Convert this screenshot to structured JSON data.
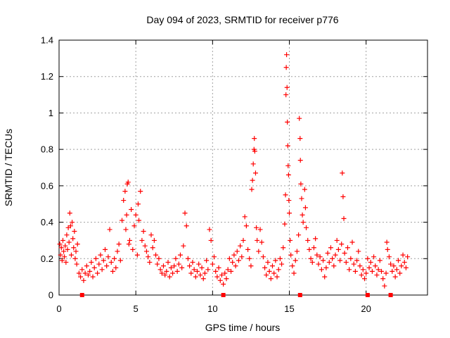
{
  "chart_data": {
    "type": "scatter",
    "title": "Day 094 of 2023, SRMTID for receiver p776",
    "xlabel": "GPS time / hours",
    "ylabel": "SRMTID / TECUs",
    "xlim": [
      0,
      24
    ],
    "ylim": [
      0,
      1.4
    ],
    "x_ticks": [
      0,
      5,
      10,
      15,
      20
    ],
    "x_tick_labels": [
      "0",
      "5",
      "10",
      "15",
      "20"
    ],
    "y_ticks": [
      0,
      0.2,
      0.4,
      0.6,
      0.8,
      1.0,
      1.2,
      1.4
    ],
    "y_tick_labels": [
      "0",
      "0.2",
      "0.4",
      "0.6",
      "0.8",
      "1",
      "1.2",
      "1.4"
    ],
    "grid": true,
    "marker": "+",
    "color": "#ff0000",
    "series": [
      {
        "name": "SRMTID",
        "points": [
          [
            0.05,
            0.28
          ],
          [
            0.1,
            0.22
          ],
          [
            0.15,
            0.26
          ],
          [
            0.2,
            0.19
          ],
          [
            0.25,
            0.3
          ],
          [
            0.3,
            0.24
          ],
          [
            0.35,
            0.21
          ],
          [
            0.4,
            0.27
          ],
          [
            0.45,
            0.18
          ],
          [
            0.5,
            0.33
          ],
          [
            0.55,
            0.25
          ],
          [
            0.6,
            0.37
          ],
          [
            0.65,
            0.29
          ],
          [
            0.7,
            0.45
          ],
          [
            0.75,
            0.38
          ],
          [
            0.8,
            0.22
          ],
          [
            0.85,
            0.4
          ],
          [
            0.9,
            0.31
          ],
          [
            0.95,
            0.26
          ],
          [
            1.0,
            0.35
          ],
          [
            1.05,
            0.2
          ],
          [
            1.1,
            0.24
          ],
          [
            1.15,
            0.17
          ],
          [
            1.2,
            0.28
          ],
          [
            1.3,
            0.12
          ],
          [
            1.4,
            0.1
          ],
          [
            1.5,
            0.14
          ],
          [
            1.6,
            0.08
          ],
          [
            1.7,
            0.12
          ],
          [
            1.8,
            0.16
          ],
          [
            1.9,
            0.11
          ],
          [
            2.0,
            0.13
          ],
          [
            2.1,
            0.18
          ],
          [
            2.2,
            0.1
          ],
          [
            2.3,
            0.15
          ],
          [
            2.4,
            0.2
          ],
          [
            2.5,
            0.12
          ],
          [
            2.6,
            0.17
          ],
          [
            2.7,
            0.22
          ],
          [
            2.8,
            0.14
          ],
          [
            2.9,
            0.19
          ],
          [
            3.0,
            0.25
          ],
          [
            3.1,
            0.16
          ],
          [
            3.2,
            0.21
          ],
          [
            3.3,
            0.36
          ],
          [
            3.4,
            0.18
          ],
          [
            3.5,
            0.13
          ],
          [
            3.6,
            0.2
          ],
          [
            3.7,
            0.15
          ],
          [
            3.8,
            0.24
          ],
          [
            3.9,
            0.28
          ],
          [
            4.0,
            0.19
          ],
          [
            4.1,
            0.41
          ],
          [
            4.2,
            0.52
          ],
          [
            4.3,
            0.57
          ],
          [
            4.35,
            0.36
          ],
          [
            4.4,
            0.44
          ],
          [
            4.45,
            0.61
          ],
          [
            4.5,
            0.62
          ],
          [
            4.55,
            0.28
          ],
          [
            4.6,
            0.3
          ],
          [
            4.7,
            0.47
          ],
          [
            4.8,
            0.25
          ],
          [
            4.9,
            0.38
          ],
          [
            5.0,
            0.44
          ],
          [
            5.1,
            0.22
          ],
          [
            5.15,
            0.5
          ],
          [
            5.2,
            0.41
          ],
          [
            5.3,
            0.57
          ],
          [
            5.4,
            0.3
          ],
          [
            5.5,
            0.35
          ],
          [
            5.6,
            0.27
          ],
          [
            5.7,
            0.24
          ],
          [
            5.8,
            0.21
          ],
          [
            5.9,
            0.18
          ],
          [
            6.0,
            0.33
          ],
          [
            6.1,
            0.26
          ],
          [
            6.2,
            0.3
          ],
          [
            6.3,
            0.22
          ],
          [
            6.4,
            0.17
          ],
          [
            6.5,
            0.2
          ],
          [
            6.6,
            0.14
          ],
          [
            6.7,
            0.12
          ],
          [
            6.8,
            0.16
          ],
          [
            6.9,
            0.11
          ],
          [
            7.0,
            0.13
          ],
          [
            7.1,
            0.18
          ],
          [
            7.2,
            0.1
          ],
          [
            7.3,
            0.15
          ],
          [
            7.4,
            0.12
          ],
          [
            7.5,
            0.16
          ],
          [
            7.6,
            0.2
          ],
          [
            7.7,
            0.13
          ],
          [
            7.8,
            0.17
          ],
          [
            7.9,
            0.22
          ],
          [
            8.0,
            0.15
          ],
          [
            8.1,
            0.27
          ],
          [
            8.2,
            0.45
          ],
          [
            8.3,
            0.38
          ],
          [
            8.4,
            0.2
          ],
          [
            8.5,
            0.16
          ],
          [
            8.6,
            0.12
          ],
          [
            8.7,
            0.18
          ],
          [
            8.8,
            0.14
          ],
          [
            8.9,
            0.1
          ],
          [
            9.0,
            0.13
          ],
          [
            9.1,
            0.17
          ],
          [
            9.2,
            0.11
          ],
          [
            9.3,
            0.15
          ],
          [
            9.4,
            0.09
          ],
          [
            9.5,
            0.12
          ],
          [
            9.6,
            0.19
          ],
          [
            9.7,
            0.14
          ],
          [
            9.8,
            0.36
          ],
          [
            9.9,
            0.3
          ],
          [
            10.0,
            0.17
          ],
          [
            10.1,
            0.21
          ],
          [
            10.2,
            0.13
          ],
          [
            10.3,
            0.1
          ],
          [
            10.4,
            0.15
          ],
          [
            10.5,
            0.08
          ],
          [
            10.6,
            0.11
          ],
          [
            10.7,
            0.06
          ],
          [
            10.8,
            0.12
          ],
          [
            10.9,
            0.09
          ],
          [
            11.0,
            0.14
          ],
          [
            11.1,
            0.2
          ],
          [
            11.2,
            0.13
          ],
          [
            11.3,
            0.18
          ],
          [
            11.4,
            0.22
          ],
          [
            11.5,
            0.16
          ],
          [
            11.6,
            0.24
          ],
          [
            11.7,
            0.19
          ],
          [
            11.8,
            0.27
          ],
          [
            11.9,
            0.21
          ],
          [
            12.0,
            0.3
          ],
          [
            12.1,
            0.43
          ],
          [
            12.2,
            0.38
          ],
          [
            12.3,
            0.25
          ],
          [
            12.4,
            0.2
          ],
          [
            12.5,
            0.16
          ],
          [
            12.55,
            0.58
          ],
          [
            12.6,
            0.63
          ],
          [
            12.65,
            0.72
          ],
          [
            12.7,
            0.8
          ],
          [
            12.72,
            0.86
          ],
          [
            12.75,
            0.79
          ],
          [
            12.8,
            0.67
          ],
          [
            12.85,
            0.37
          ],
          [
            12.9,
            0.3
          ],
          [
            13.0,
            0.24
          ],
          [
            13.1,
            0.36
          ],
          [
            13.2,
            0.29
          ],
          [
            13.3,
            0.21
          ],
          [
            13.4,
            0.15
          ],
          [
            13.5,
            0.11
          ],
          [
            13.6,
            0.18
          ],
          [
            13.7,
            0.13
          ],
          [
            13.8,
            0.09
          ],
          [
            13.9,
            0.16
          ],
          [
            14.0,
            0.12
          ],
          [
            14.1,
            0.19
          ],
          [
            14.2,
            0.1
          ],
          [
            14.3,
            0.14
          ],
          [
            14.4,
            0.2
          ],
          [
            14.5,
            0.17
          ],
          [
            14.6,
            0.26
          ],
          [
            14.7,
            0.39
          ],
          [
            14.75,
            0.55
          ],
          [
            14.78,
            1.1
          ],
          [
            14.8,
            1.25
          ],
          [
            14.82,
            1.32
          ],
          [
            14.85,
            1.14
          ],
          [
            14.87,
            0.95
          ],
          [
            14.9,
            0.82
          ],
          [
            14.92,
            0.71
          ],
          [
            14.95,
            0.66
          ],
          [
            14.97,
            0.52
          ],
          [
            15.0,
            0.45
          ],
          [
            15.05,
            0.3
          ],
          [
            15.1,
            0.22
          ],
          [
            15.2,
            0.16
          ],
          [
            15.3,
            0.12
          ],
          [
            15.4,
            0.19
          ],
          [
            15.5,
            0.24
          ],
          [
            15.6,
            0.33
          ],
          [
            15.65,
            0.97
          ],
          [
            15.7,
            0.86
          ],
          [
            15.72,
            0.74
          ],
          [
            15.75,
            0.61
          ],
          [
            15.8,
            0.53
          ],
          [
            15.85,
            0.44
          ],
          [
            15.9,
            0.4
          ],
          [
            16.0,
            0.58
          ],
          [
            16.05,
            0.48
          ],
          [
            16.1,
            0.37
          ],
          [
            16.2,
            0.3
          ],
          [
            16.3,
            0.25
          ],
          [
            16.4,
            0.2
          ],
          [
            16.5,
            0.18
          ],
          [
            16.6,
            0.26
          ],
          [
            16.7,
            0.31
          ],
          [
            16.8,
            0.22
          ],
          [
            16.9,
            0.17
          ],
          [
            17.0,
            0.21
          ],
          [
            17.1,
            0.14
          ],
          [
            17.2,
            0.19
          ],
          [
            17.3,
            0.1
          ],
          [
            17.4,
            0.15
          ],
          [
            17.5,
            0.23
          ],
          [
            17.6,
            0.18
          ],
          [
            17.7,
            0.26
          ],
          [
            17.8,
            0.2
          ],
          [
            17.9,
            0.16
          ],
          [
            18.0,
            0.22
          ],
          [
            18.1,
            0.3
          ],
          [
            18.2,
            0.25
          ],
          [
            18.3,
            0.19
          ],
          [
            18.4,
            0.28
          ],
          [
            18.45,
            0.67
          ],
          [
            18.5,
            0.54
          ],
          [
            18.55,
            0.42
          ],
          [
            18.6,
            0.23
          ],
          [
            18.7,
            0.18
          ],
          [
            18.8,
            0.26
          ],
          [
            18.9,
            0.14
          ],
          [
            19.0,
            0.2
          ],
          [
            19.1,
            0.29
          ],
          [
            19.2,
            0.17
          ],
          [
            19.3,
            0.13
          ],
          [
            19.4,
            0.19
          ],
          [
            19.5,
            0.24
          ],
          [
            19.6,
            0.16
          ],
          [
            19.7,
            0.11
          ],
          [
            19.8,
            0.14
          ],
          [
            19.9,
            0.09
          ],
          [
            20.0,
            0.12
          ],
          [
            20.1,
            0.2
          ],
          [
            20.2,
            0.15
          ],
          [
            20.3,
            0.18
          ],
          [
            20.4,
            0.13
          ],
          [
            20.5,
            0.21
          ],
          [
            20.6,
            0.16
          ],
          [
            20.7,
            0.11
          ],
          [
            20.8,
            0.14
          ],
          [
            20.9,
            0.19
          ],
          [
            21.0,
            0.13
          ],
          [
            21.1,
            0.09
          ],
          [
            21.2,
            0.05
          ],
          [
            21.3,
            0.12
          ],
          [
            21.35,
            0.29
          ],
          [
            21.4,
            0.25
          ],
          [
            21.5,
            0.21
          ],
          [
            21.6,
            0.17
          ],
          [
            21.7,
            0.13
          ],
          [
            21.8,
            0.16
          ],
          [
            21.9,
            0.1
          ],
          [
            22.0,
            0.14
          ],
          [
            22.1,
            0.19
          ],
          [
            22.2,
            0.12
          ],
          [
            22.3,
            0.16
          ],
          [
            22.4,
            0.22
          ],
          [
            22.5,
            0.18
          ],
          [
            22.6,
            0.15
          ],
          [
            22.7,
            0.21
          ]
        ]
      }
    ],
    "bottom_markers_x": [
      1.5,
      10.7,
      15.7,
      20.1,
      21.6
    ]
  }
}
